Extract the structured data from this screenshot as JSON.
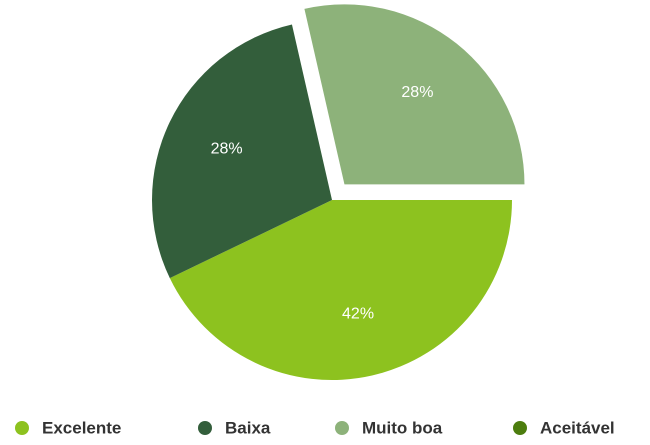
{
  "chart_data": {
    "type": "pie",
    "categories": [
      "Excelente",
      "Baixa",
      "Muito boa",
      "Aceitável"
    ],
    "values": [
      42,
      28,
      28,
      0
    ],
    "value_labels": [
      "42%",
      "28%",
      "28%",
      null
    ],
    "colors": [
      "#8dc21f",
      "#335e3b",
      "#8db27a",
      "#4c7d0e"
    ],
    "exploded": [
      false,
      false,
      true,
      false
    ],
    "legend": "bottom"
  }
}
